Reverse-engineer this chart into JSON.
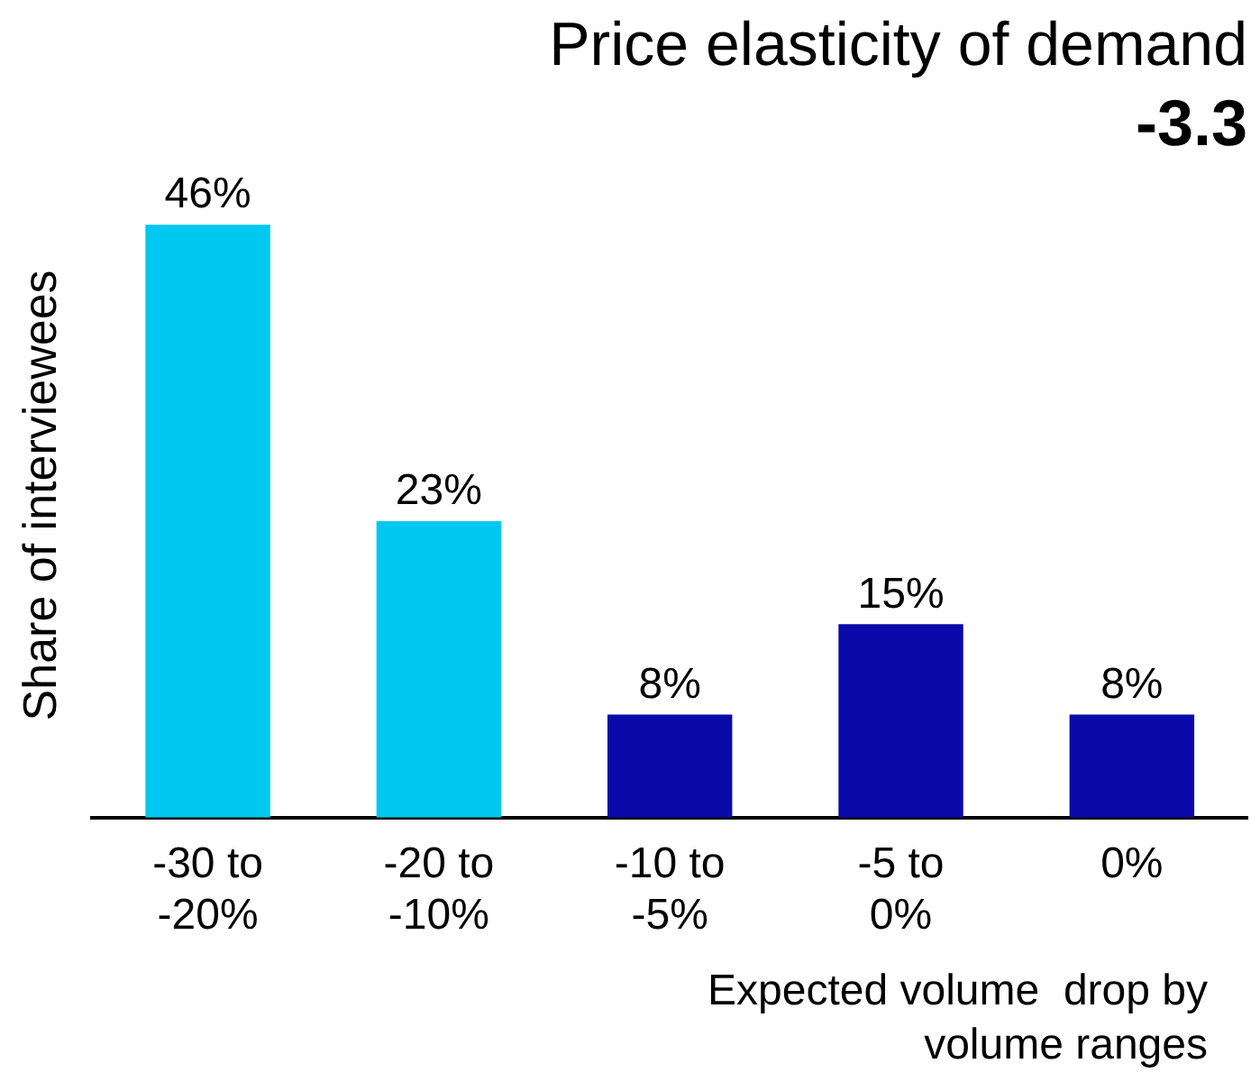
{
  "chart_data": {
    "type": "bar",
    "title": "Price elasticity of demand",
    "subtitle": "-3.3",
    "xlabel": "Expected volume  drop by volume ranges",
    "ylabel": "Share of interviewees",
    "categories": [
      "-30 to -20%",
      "-20 to -10%",
      "-10 to -5%",
      "-5 to 0%",
      "0%"
    ],
    "values": [
      46,
      23,
      8,
      15,
      8
    ],
    "colors": [
      "#00c8f0",
      "#00c8f0",
      "#0a0aa8",
      "#0a0aa8",
      "#0a0aa8"
    ],
    "value_labels": [
      "46%",
      "23%",
      "8%",
      "15%",
      "8%"
    ],
    "grid": false,
    "legend": false
  }
}
